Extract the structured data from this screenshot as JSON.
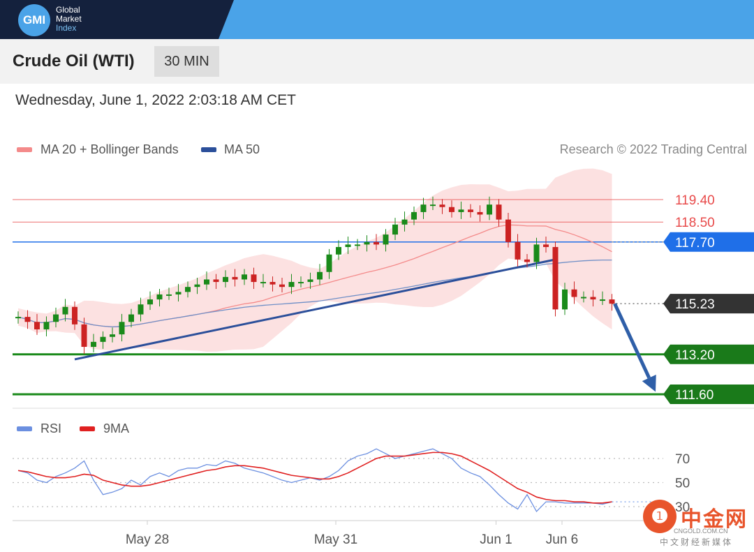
{
  "brand": {
    "badge": "GMI",
    "line1": "Global",
    "line2": "Market",
    "line3": "Index"
  },
  "header": {
    "title": "Crude Oil (WTI)",
    "interval": "30 MIN",
    "timestamp": "Wednesday, June 1, 2022 2:03:18 AM CET"
  },
  "legend": {
    "ma20": {
      "label": "MA 20 + Bollinger Bands",
      "color": "#f48a8a"
    },
    "ma50": {
      "label": "MA 50",
      "color": "#2b4f9a"
    },
    "copyright": "Research © 2022 Trading Central"
  },
  "rsi_legend": {
    "rsi": {
      "label": "RSI",
      "color": "#6b8fe0"
    },
    "ma9": {
      "label": "9MA",
      "color": "#e02020"
    }
  },
  "watermark": {
    "cn": "中金网",
    "domain": "CNGOLD.COM.CN",
    "sub": "中文财经新媒体"
  },
  "chart_data": [
    {
      "type": "candlestick",
      "title": "Crude Oil (WTI)",
      "interval": "30 MIN",
      "x_ticks": [
        "May 28",
        "May 31",
        "Jun 1",
        "Jun 6"
      ],
      "ylim": [
        111.0,
        121.0
      ],
      "levels": [
        {
          "value": 119.4,
          "label": "119.40",
          "kind": "resistance",
          "color": "#e84a4a"
        },
        {
          "value": 118.5,
          "label": "118.50",
          "kind": "resistance",
          "color": "#e84a4a"
        },
        {
          "value": 117.7,
          "label": "117.70",
          "kind": "pivot",
          "color": "#1f6fe8"
        },
        {
          "value": 115.23,
          "label": "115.23",
          "kind": "last",
          "color": "#333333"
        },
        {
          "value": 113.2,
          "label": "113.20",
          "kind": "support",
          "color": "#1a8a1a"
        },
        {
          "value": 111.6,
          "label": "111.60",
          "kind": "support",
          "color": "#1a8a1a"
        }
      ],
      "colors": {
        "up": "#1a8a1a",
        "down": "#cc2222"
      },
      "close": [
        114.7,
        114.5,
        114.2,
        114.5,
        114.8,
        115.1,
        114.4,
        113.5,
        113.7,
        113.9,
        114.0,
        114.5,
        114.8,
        115.2,
        115.4,
        115.6,
        115.6,
        115.7,
        115.9,
        116.0,
        116.2,
        116.1,
        116.3,
        116.2,
        116.4,
        116.1,
        116.1,
        116.0,
        115.9,
        116.1,
        116.1,
        116.2,
        116.5,
        117.2,
        117.5,
        117.6,
        117.6,
        117.7,
        117.6,
        118.0,
        118.4,
        118.6,
        118.9,
        119.2,
        119.2,
        119.1,
        118.9,
        119.0,
        118.9,
        118.8,
        119.2,
        118.6,
        117.7,
        117.0,
        116.9,
        117.6,
        117.5,
        115.0,
        115.8,
        115.5,
        115.5,
        115.4,
        115.4,
        115.23
      ],
      "trendline": [
        [
          6,
          113.0
        ],
        [
          57,
          117.0
        ]
      ],
      "forecast_arrow": [
        [
          63,
          115.23
        ],
        [
          66,
          111.7
        ]
      ],
      "x_scale": {
        "May 28": 10,
        "May 31": 30,
        "Jun 1": 47,
        "Jun 6": 54
      }
    },
    {
      "type": "line",
      "title": "RSI",
      "series": [
        {
          "name": "RSI",
          "color": "#6b8fe0"
        },
        {
          "name": "9MA",
          "color": "#e02020"
        }
      ],
      "y_ticks": [
        70,
        50,
        30
      ],
      "ylim": [
        20,
        85
      ],
      "rsi": [
        60,
        58,
        52,
        50,
        55,
        58,
        62,
        68,
        52,
        40,
        42,
        45,
        52,
        48,
        55,
        58,
        55,
        60,
        62,
        62,
        65,
        64,
        68,
        66,
        62,
        60,
        58,
        55,
        52,
        50,
        52,
        54,
        52,
        55,
        60,
        68,
        72,
        74,
        78,
        74,
        70,
        72,
        74,
        76,
        78,
        74,
        70,
        62,
        58,
        55,
        48,
        40,
        33,
        28,
        40,
        26,
        34,
        34,
        33,
        33,
        33,
        33,
        32,
        34
      ],
      "ma9": [
        60,
        59,
        57,
        55,
        54,
        54,
        55,
        57,
        56,
        52,
        50,
        48,
        47,
        47,
        48,
        50,
        52,
        54,
        56,
        58,
        60,
        61,
        63,
        64,
        64,
        63,
        62,
        60,
        58,
        56,
        55,
        54,
        53,
        53,
        55,
        58,
        62,
        66,
        70,
        72,
        72,
        72,
        73,
        74,
        75,
        75,
        74,
        72,
        68,
        64,
        60,
        55,
        50,
        45,
        42,
        38,
        36,
        35,
        35,
        34,
        34,
        33,
        33,
        34
      ]
    }
  ]
}
